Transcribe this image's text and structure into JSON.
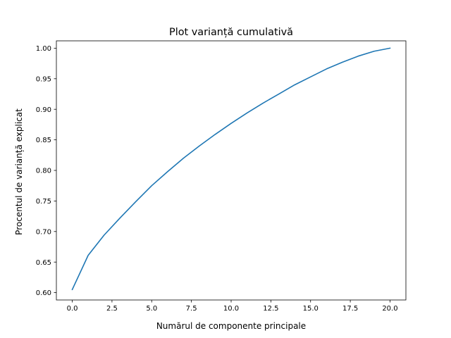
{
  "chart_data": {
    "type": "line",
    "title": "Plot varianță cumulativă",
    "xlabel": "Numărul de componente principale",
    "ylabel": "Procentul de varianță explicat",
    "xlim": [
      -1.0,
      21.0
    ],
    "ylim": [
      0.588,
      1.012
    ],
    "xticks": [
      "0.0",
      "2.5",
      "5.0",
      "7.5",
      "10.0",
      "12.5",
      "15.0",
      "17.5",
      "20.0"
    ],
    "xtick_values": [
      0,
      2.5,
      5,
      7.5,
      10,
      12.5,
      15,
      17.5,
      20
    ],
    "yticks": [
      "0.60",
      "0.65",
      "0.70",
      "0.75",
      "0.80",
      "0.85",
      "0.90",
      "0.95",
      "1.00"
    ],
    "ytick_values": [
      0.6,
      0.65,
      0.7,
      0.75,
      0.8,
      0.85,
      0.9,
      0.95,
      1.0
    ],
    "grid": false,
    "series": [
      {
        "color": "#1f77b4",
        "x": [
          0,
          1,
          2,
          3,
          4,
          5,
          6,
          7,
          8,
          9,
          10,
          11,
          12,
          13,
          14,
          15,
          16,
          17,
          18,
          19,
          20
        ],
        "y": [
          0.605,
          0.661,
          0.694,
          0.722,
          0.749,
          0.775,
          0.798,
          0.82,
          0.84,
          0.859,
          0.877,
          0.894,
          0.91,
          0.925,
          0.94,
          0.953,
          0.966,
          0.977,
          0.987,
          0.995,
          1.0
        ]
      }
    ]
  }
}
